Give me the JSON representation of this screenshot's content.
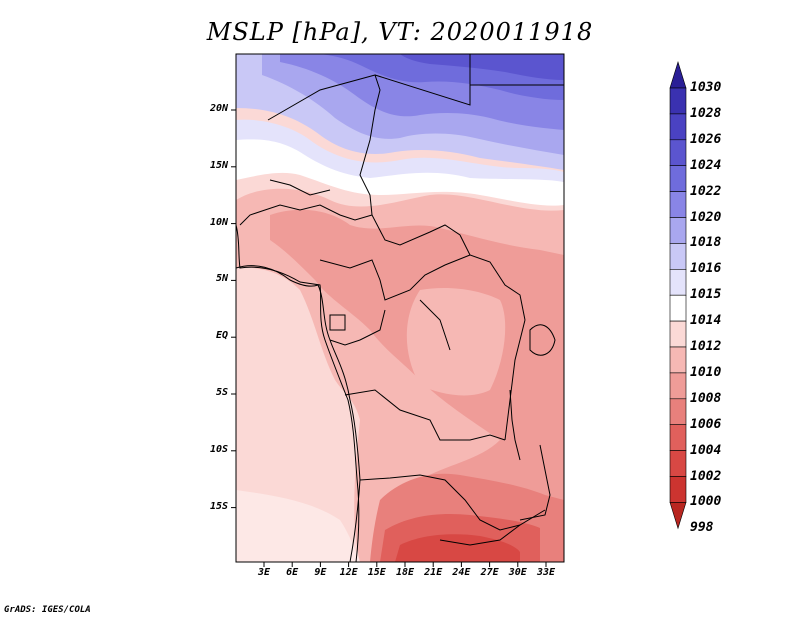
{
  "title": "MSLP [hPa], VT: 2020011918",
  "footer": "GrADS: IGES/COLA",
  "lat_labels": [
    "20N",
    "15N",
    "10N",
    "5N",
    "EQ",
    "5S",
    "10S",
    "15S"
  ],
  "lon_labels": [
    "3E",
    "6E",
    "9E",
    "12E",
    "15E",
    "18E",
    "21E",
    "24E",
    "27E",
    "30E",
    "33E"
  ],
  "legend": {
    "levels": [
      "1030",
      "1028",
      "1026",
      "1024",
      "1022",
      "1020",
      "1018",
      "1016",
      "1015",
      "1014",
      "1012",
      "1010",
      "1008",
      "1006",
      "1004",
      "1002",
      "1000",
      "998"
    ],
    "colors": [
      "#2a1f96",
      "#3a31b0",
      "#4a42c2",
      "#5b55cf",
      "#6f6cdc",
      "#8985e6",
      "#a9a7ef",
      "#c9c8f6",
      "#e4e3fb",
      "#ffffff",
      "#fbd9d6",
      "#f6b8b4",
      "#ef9c98",
      "#e8807c",
      "#e0605c",
      "#d84844",
      "#cc3430",
      "#b82620"
    ]
  },
  "chart_data": {
    "type": "heatmap",
    "title": "MSLP [hPa], VT: 2020011918",
    "variable": "Mean sea level pressure",
    "units": "hPa",
    "valid_time": "2020011918",
    "region": "Central/Southern Africa",
    "lon_range": [
      0,
      34.5
    ],
    "lat_range": [
      -19,
      24.5
    ],
    "contour_levels": [
      998,
      1000,
      1002,
      1004,
      1006,
      1008,
      1010,
      1012,
      1014,
      1015,
      1016,
      1018,
      1020,
      1022,
      1024,
      1026,
      1028,
      1030
    ],
    "features": [
      {
        "name": "high pressure",
        "region": "northern Sahara",
        "value_approx": 1026
      },
      {
        "name": "low pressure",
        "region": "southern Africa (Zambia/Zimbabwe)",
        "value_approx": 1002
      }
    ]
  }
}
